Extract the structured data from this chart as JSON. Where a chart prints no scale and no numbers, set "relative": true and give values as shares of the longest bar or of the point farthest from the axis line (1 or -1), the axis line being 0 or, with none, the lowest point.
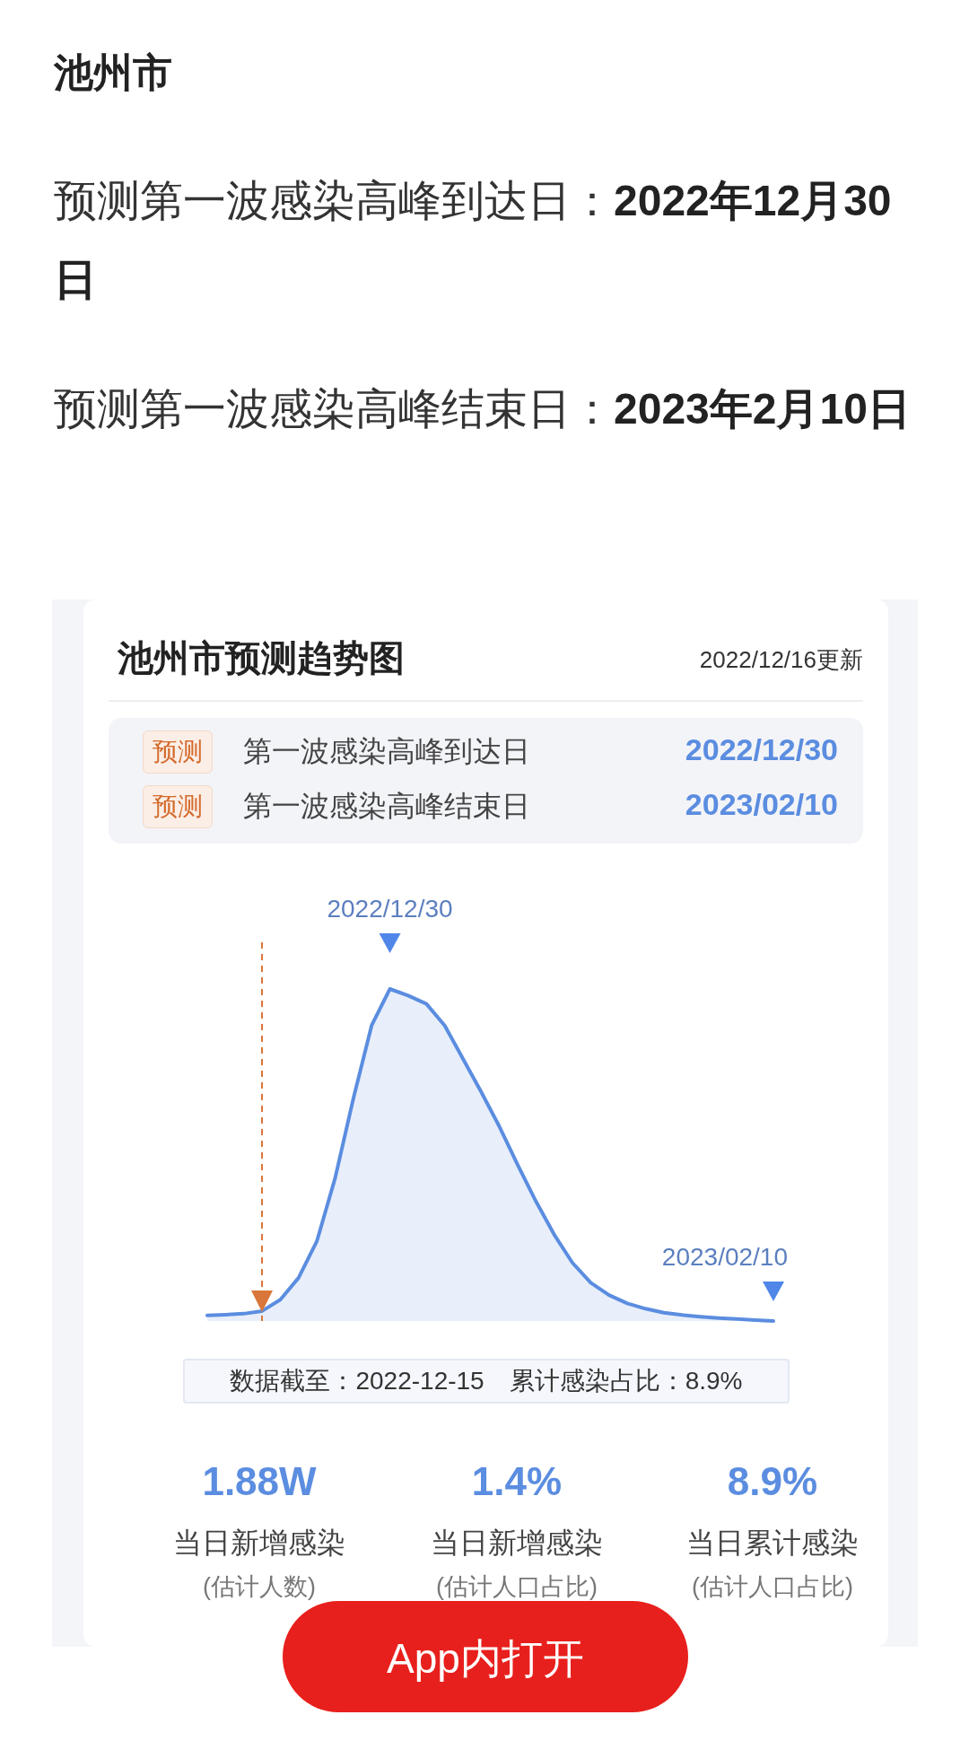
{
  "chart_data": {
    "type": "area",
    "title": "池州市预测趋势图",
    "subtitle": "2022/12/16更新",
    "relative": true,
    "categories": [
      null,
      null,
      null,
      null,
      null,
      null,
      null,
      null,
      null,
      null,
      null,
      null,
      null,
      null,
      null,
      null,
      null,
      null,
      null,
      null,
      null,
      null,
      null,
      null,
      null,
      null,
      null,
      null,
      null,
      null,
      null,
      null
    ],
    "series": [
      {
        "color": "#5b8de0",
        "values": [
          0.017,
          0.019,
          0.022,
          0.03,
          0.064,
          0.13,
          0.24,
          0.43,
          0.67,
          0.89,
          1,
          0.98,
          0.955,
          0.89,
          0.79,
          0.69,
          0.585,
          0.47,
          0.36,
          0.26,
          0.175,
          0.115,
          0.078,
          0.053,
          0.037,
          0.025,
          0.018,
          0.013,
          0.009,
          0.006,
          0.003,
          0
        ]
      }
    ],
    "annotations": [
      "池州市",
      "预测第一波感染高峰到达日：",
      "2022年12月30日",
      "预测第一波感染高峰结束日：",
      "2023年2月10日",
      "预测",
      "第一波感染高峰到达日",
      "2022/12/30",
      "预测",
      "第一波感染高峰结束日",
      "2023/02/10",
      "2022/12/30",
      "2023/02/10",
      "数据截至：2022-12-15　累计感染占比：8.9%",
      "1.88W",
      "当日新增感染",
      "(估计人数)",
      "1.4%",
      "当日新增感染",
      "(估计人口占比)",
      "8.9%",
      "当日累计感染",
      "(估计人口占比)",
      "App内打开"
    ]
  }
}
